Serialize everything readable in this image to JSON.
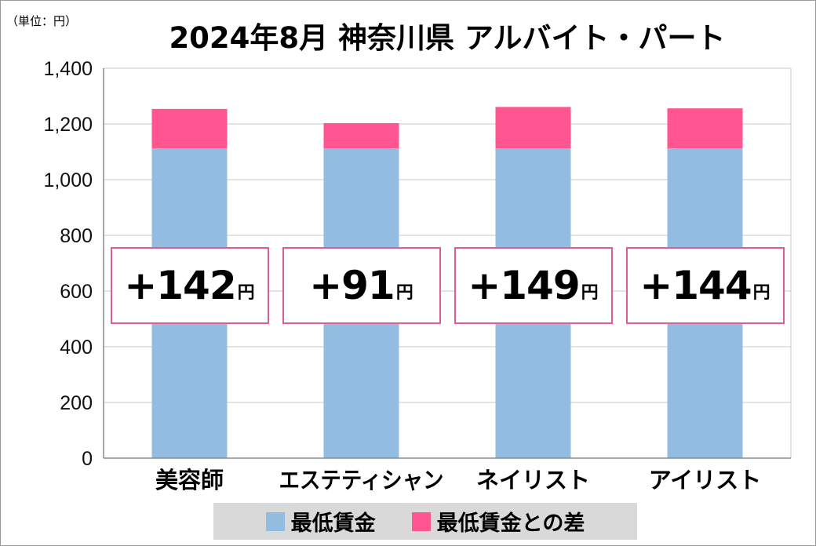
{
  "unit_label": "（単位：円）",
  "title": "2024年8月 神奈川県 アルバイト・パート",
  "colors": {
    "min_wage": "#93bde0",
    "diff": "#ff5591",
    "box_border": "#e05c95",
    "grid": "#c8c8c8"
  },
  "chart_data": {
    "type": "bar",
    "stacked": true,
    "categories": [
      "美容師",
      "エステティシャン",
      "ネイリスト",
      "アイリスト"
    ],
    "series": [
      {
        "name": "最低賃金",
        "values": [
          1112,
          1112,
          1112,
          1112
        ]
      },
      {
        "name": "最低賃金との差",
        "values": [
          142,
          91,
          149,
          144
        ]
      }
    ],
    "ylim": [
      0,
      1400
    ],
    "yticks": [
      0,
      200,
      400,
      600,
      800,
      1000,
      1200,
      1400
    ],
    "ytick_labels": [
      "0",
      "200",
      "400",
      "600",
      "800",
      "1,000",
      "1,200",
      "1,400"
    ],
    "grid": true,
    "legend": "bottom",
    "annotations": [
      {
        "sign": "+",
        "value": "142",
        "unit": "円"
      },
      {
        "sign": "+",
        "value": "91",
        "unit": "円"
      },
      {
        "sign": "+",
        "value": "149",
        "unit": "円"
      },
      {
        "sign": "+",
        "value": "144",
        "unit": "円"
      }
    ]
  },
  "legend": {
    "items": [
      {
        "label": "最低賃金"
      },
      {
        "label": "最低賃金との差"
      }
    ]
  }
}
